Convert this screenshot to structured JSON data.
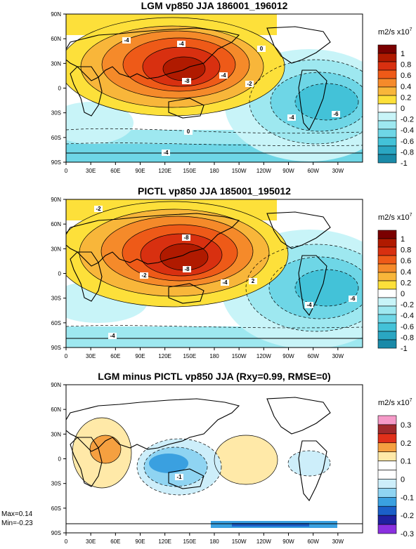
{
  "panels": [
    {
      "title": "LGM vp850 JJA 186001_196012",
      "units": "m2/s x10",
      "units_exp": "7"
    },
    {
      "title": "PICTL vp850 JJA 185001_195012",
      "units": "m2/s x10",
      "units_exp": "7"
    },
    {
      "title": "LGM minus PICTL vp850 JJA (Rxy=0.99, RMSE=0)",
      "units": "m2/s x10",
      "units_exp": "7"
    }
  ],
  "stats": {
    "max": "Max=0.14",
    "min": "Min=-0.23"
  },
  "chart_data": [
    {
      "type": "heatmap",
      "title": "LGM vp850 JJA 186001_196012",
      "x_ticks": [
        "0",
        "30E",
        "60E",
        "90E",
        "120E",
        "150E",
        "180",
        "150W",
        "120W",
        "90W",
        "60W",
        "30W"
      ],
      "y_ticks": [
        "90N",
        "60N",
        "30N",
        "0",
        "30S",
        "60S",
        "90S"
      ],
      "colorbar": {
        "labels": [
          "1",
          "0.8",
          "0.6",
          "0.4",
          "0.2",
          "0",
          "-0.2",
          "-0.4",
          "-0.6",
          "-0.8",
          "-1"
        ],
        "colors": [
          "#7a0000",
          "#b01a00",
          "#d83010",
          "#ee5a18",
          "#f58a2a",
          "#f8b63a",
          "#fde03a",
          "#ffffff",
          "#c8f4f8",
          "#9ee8f0",
          "#6ed6e6",
          "#43c2d8",
          "#2aa6c2",
          "#1a8aa8"
        ]
      },
      "contour_labels": [
        "-4",
        "-4",
        "-8",
        "-8",
        "-4",
        "-2",
        "0",
        "0",
        "-4",
        "-6",
        "-4"
      ]
    },
    {
      "type": "heatmap",
      "title": "PICTL vp850 JJA 185001_195012",
      "x_ticks": [
        "0",
        "30E",
        "60E",
        "90E",
        "120E",
        "150E",
        "180",
        "150W",
        "120W",
        "90W",
        "60W",
        "30W"
      ],
      "y_ticks": [
        "90N",
        "60N",
        "30N",
        "0",
        "30S",
        "60S",
        "90S"
      ],
      "colorbar": {
        "labels": [
          "1",
          "0.8",
          "0.6",
          "0.4",
          "0.2",
          "0",
          "-0.2",
          "-0.4",
          "-0.6",
          "-0.8",
          "-1"
        ],
        "colors": [
          "#7a0000",
          "#b01a00",
          "#d83010",
          "#ee5a18",
          "#f58a2a",
          "#f8b63a",
          "#fde03a",
          "#ffffff",
          "#c8f4f8",
          "#9ee8f0",
          "#6ed6e6",
          "#43c2d8",
          "#2aa6c2",
          "#1a8aa8"
        ]
      },
      "contour_labels": [
        "-2",
        "-8",
        "-8",
        "-4",
        "-2",
        "2",
        "-4",
        "-6",
        "-4"
      ]
    },
    {
      "type": "heatmap",
      "title": "LGM minus PICTL vp850 JJA (Rxy=0.99, RMSE=0)",
      "x_ticks": [
        "0",
        "30E",
        "60E",
        "90E",
        "120E",
        "150E",
        "180",
        "150W",
        "120W",
        "90W",
        "60W",
        "30W"
      ],
      "y_ticks": [
        "90N",
        "60N",
        "30N",
        "0",
        "30S",
        "60S",
        "90S"
      ],
      "colorbar": {
        "labels": [
          "0.3",
          "0.2",
          "0.1",
          "0",
          "-0.1",
          "-0.2",
          "-0.3"
        ],
        "colors": [
          "#f59ac8",
          "#a0292c",
          "#e0301a",
          "#f5a040",
          "#ffe9a8",
          "#ffffff",
          "#ffffff",
          "#cdeefa",
          "#8fd4f2",
          "#3aa0e0",
          "#1b5fc8",
          "#2020a0",
          "#8a30e0"
        ]
      },
      "contour_labels": [
        "-1"
      ],
      "max": 0.14,
      "min": -0.23
    }
  ]
}
